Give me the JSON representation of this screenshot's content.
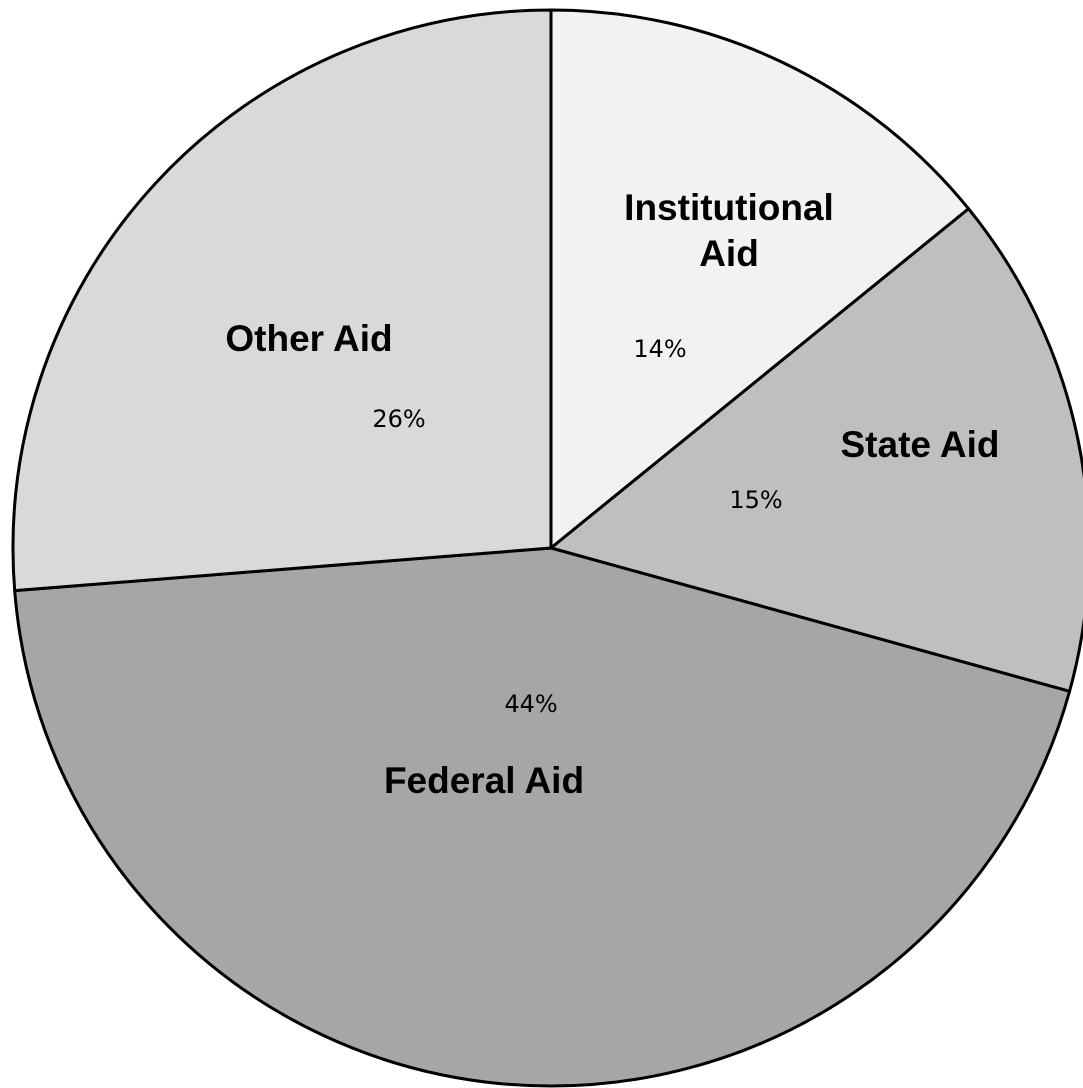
{
  "chart_data": {
    "type": "pie",
    "start_angle_deg": 90,
    "direction": "clockwise",
    "slices": [
      {
        "label": "Institutional Aid",
        "value": 14,
        "display": "14%",
        "color": "#f2f2f2"
      },
      {
        "label": "State Aid",
        "value": 15,
        "display": "15%",
        "color": "#bfbfbf"
      },
      {
        "label": "Federal Aid",
        "value": 44,
        "display": "44%",
        "color": "#a6a6a6"
      },
      {
        "label": "Other Aid",
        "value": 26,
        "display": "26%",
        "color": "#d9d9d9"
      }
    ],
    "title": "",
    "legend": "none",
    "edge_color": "#000000"
  }
}
